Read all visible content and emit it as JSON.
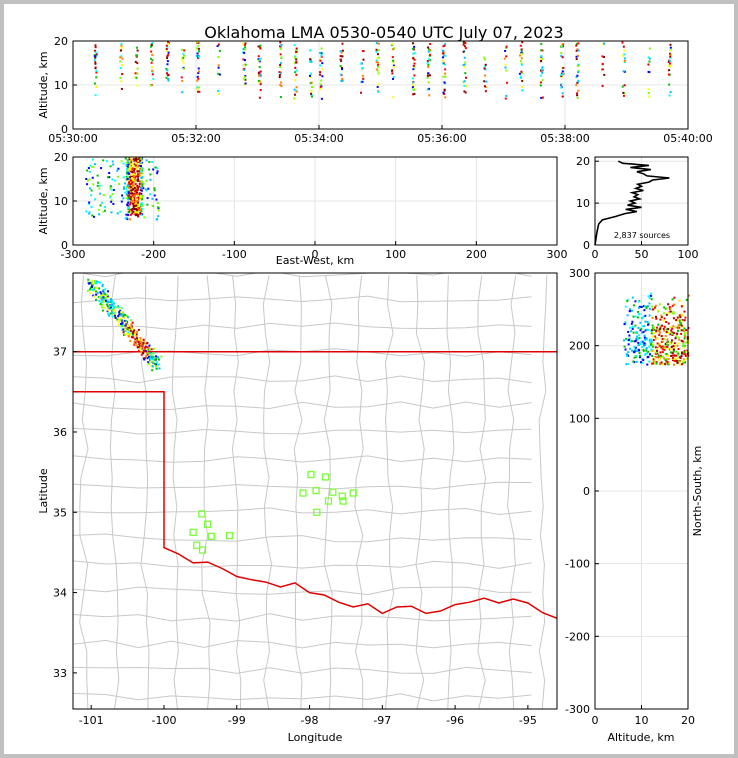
{
  "title": "Oklahoma LMA 0530-0540 UTC July 07, 2023",
  "colors": {
    "background": "#ffffff",
    "outer_border": "#c0c0c0",
    "state_border": "#e00000",
    "county_lines": "#c8c8c8",
    "station_marker": "#7cfc3c",
    "altitude_profile": "#000000"
  },
  "chart_data": [
    {
      "id": "time-altitude",
      "type": "scatter",
      "xlabel": "",
      "ylabel": "Altitude, km",
      "x_tick_labels": [
        "05:30:00",
        "05:32:00",
        "05:34:00",
        "05:36:00",
        "05:38:00",
        "05:40:00"
      ],
      "xlim": [
        "05:30:00",
        "05:40:00"
      ],
      "y_ticks": [
        0,
        10,
        20
      ],
      "ylim": [
        0,
        20
      ],
      "grid": true,
      "flash_times": [
        "05:30:20",
        "05:30:45",
        "05:31:00",
        "05:31:15",
        "05:31:30",
        "05:31:45",
        "05:32:00",
        "05:32:20",
        "05:32:45",
        "05:33:00",
        "05:33:20",
        "05:33:35",
        "05:33:50",
        "05:34:00",
        "05:34:20",
        "05:34:40",
        "05:34:55",
        "05:35:10",
        "05:35:30",
        "05:35:45",
        "05:36:00",
        "05:36:20",
        "05:36:40",
        "05:37:00",
        "05:37:15",
        "05:37:35",
        "05:37:55",
        "05:38:10",
        "05:38:35",
        "05:38:55",
        "05:39:20",
        "05:39:40"
      ],
      "altitude_range_km": [
        7,
        20
      ]
    },
    {
      "id": "east-west-altitude",
      "type": "scatter",
      "xlabel": "East-West, km",
      "ylabel": "Altitude, km",
      "x_ticks": [
        -300,
        -200,
        -100,
        0,
        100,
        200,
        300
      ],
      "xlim": [
        -300,
        300
      ],
      "y_ticks": [
        0,
        10,
        20
      ],
      "ylim": [
        0,
        20
      ],
      "grid": true,
      "east_west_range_km": [
        -285,
        -195
      ],
      "core_east_west_km": [
        -235,
        -215
      ],
      "altitude_range_km": [
        6,
        20
      ]
    },
    {
      "id": "altitude-histogram",
      "type": "line",
      "x_ticks": [
        0,
        50,
        100
      ],
      "xlim": [
        0,
        100
      ],
      "y_ticks": [
        0,
        10,
        20
      ],
      "ylim": [
        0,
        21
      ],
      "annotation": "2,837 sources",
      "profile": {
        "altitude_km": [
          0,
          3,
          5,
          6,
          6.8,
          7.5,
          8,
          8.5,
          9,
          9.5,
          10,
          10.5,
          11,
          11.5,
          12,
          12.5,
          13,
          13.5,
          14,
          14.5,
          15,
          15.5,
          16,
          16.5,
          17,
          17.5,
          18,
          18.5,
          19,
          19.5,
          20
        ],
        "count": [
          0,
          2,
          4,
          8,
          22,
          32,
          45,
          33,
          50,
          35,
          43,
          38,
          48,
          42,
          46,
          40,
          52,
          44,
          50,
          46,
          58,
          62,
          80,
          56,
          52,
          45,
          60,
          38,
          58,
          30,
          25
        ]
      }
    },
    {
      "id": "plan-view",
      "type": "scatter",
      "xlabel": "Longitude",
      "ylabel": "Latitude",
      "x_ticks": [
        -101,
        -100,
        -99,
        -98,
        -97,
        -96,
        -95
      ],
      "xlim": [
        -101.25,
        -94.6
      ],
      "y_ticks": [
        33,
        34,
        35,
        36,
        37
      ],
      "ylim": [
        32.55,
        37.98
      ],
      "source_region": {
        "lon": [
          -101.0,
          -100.1
        ],
        "lat": [
          36.85,
          37.85
        ]
      },
      "lma_stations": [
        {
          "lon": -99.6,
          "lat": 34.75
        },
        {
          "lon": -99.48,
          "lat": 34.98
        },
        {
          "lon": -99.4,
          "lat": 34.85
        },
        {
          "lon": -99.35,
          "lat": 34.7
        },
        {
          "lon": -99.55,
          "lat": 34.59
        },
        {
          "lon": -99.47,
          "lat": 34.53
        },
        {
          "lon": -99.1,
          "lat": 34.71
        },
        {
          "lon": -97.98,
          "lat": 35.47
        },
        {
          "lon": -97.78,
          "lat": 35.44
        },
        {
          "lon": -98.09,
          "lat": 35.24
        },
        {
          "lon": -97.91,
          "lat": 35.27
        },
        {
          "lon": -97.68,
          "lat": 35.25
        },
        {
          "lon": -97.74,
          "lat": 35.14
        },
        {
          "lon": -97.55,
          "lat": 35.2
        },
        {
          "lon": -97.54,
          "lat": 35.14
        },
        {
          "lon": -97.4,
          "lat": 35.24
        },
        {
          "lon": -97.9,
          "lat": 35.0
        }
      ]
    },
    {
      "id": "altitude-north-south",
      "type": "scatter",
      "xlabel": "Altitude, km",
      "ylabel": "North-South, km",
      "x_ticks": [
        0,
        10,
        20
      ],
      "xlim": [
        0,
        20
      ],
      "y_ticks": [
        -300,
        -200,
        -100,
        0,
        100,
        200,
        300
      ],
      "ylim": [
        -300,
        300
      ],
      "north_south_range_km": [
        175,
        275
      ],
      "altitude_range_km": [
        6,
        20
      ]
    }
  ]
}
